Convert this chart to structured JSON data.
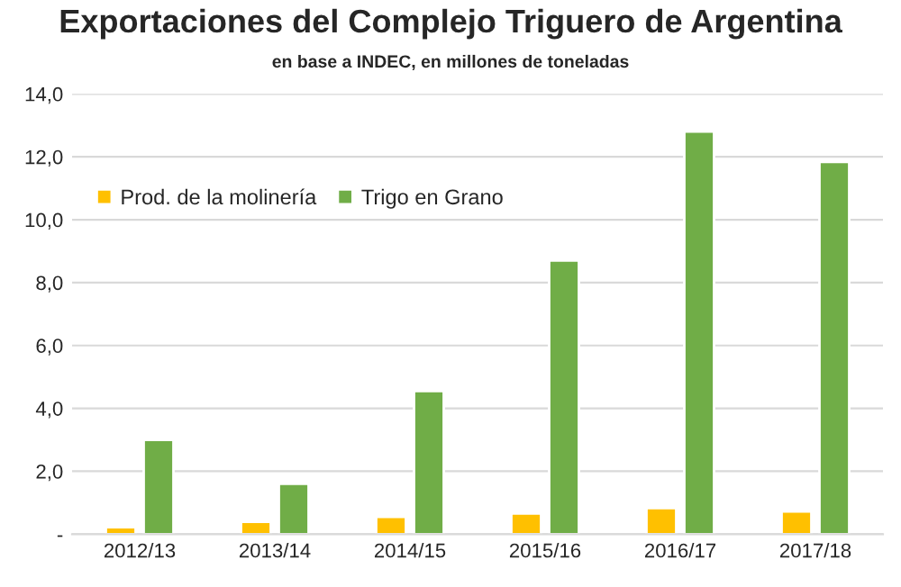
{
  "chart_data": {
    "type": "bar",
    "title": "Exportaciones del Complejo Triguero de Argentina",
    "subtitle": "en base a INDEC, en millones de toneladas",
    "categories": [
      "2012/13",
      "2013/14",
      "2014/15",
      "2015/16",
      "2016/17",
      "2017/18"
    ],
    "series": [
      {
        "name": "Prod. de la molinería",
        "color": "#ffc000",
        "values": [
          0.22,
          0.39,
          0.55,
          0.66,
          0.83,
          0.72
        ]
      },
      {
        "name": "Trigo en Grano",
        "color": "#70ad47",
        "values": [
          3.0,
          1.6,
          4.55,
          8.7,
          12.8,
          11.84
        ]
      }
    ],
    "ylim": [
      0,
      14
    ],
    "yticks": [
      {
        "value": 0,
        "label": "-"
      },
      {
        "value": 2,
        "label": "2,0"
      },
      {
        "value": 4,
        "label": "4,0"
      },
      {
        "value": 6,
        "label": "6,0"
      },
      {
        "value": 8,
        "label": "8,0"
      },
      {
        "value": 10,
        "label": "10,0"
      },
      {
        "value": 12,
        "label": "12,0"
      },
      {
        "value": 14,
        "label": "14,0"
      }
    ],
    "grid": "y",
    "legend": "top left"
  }
}
